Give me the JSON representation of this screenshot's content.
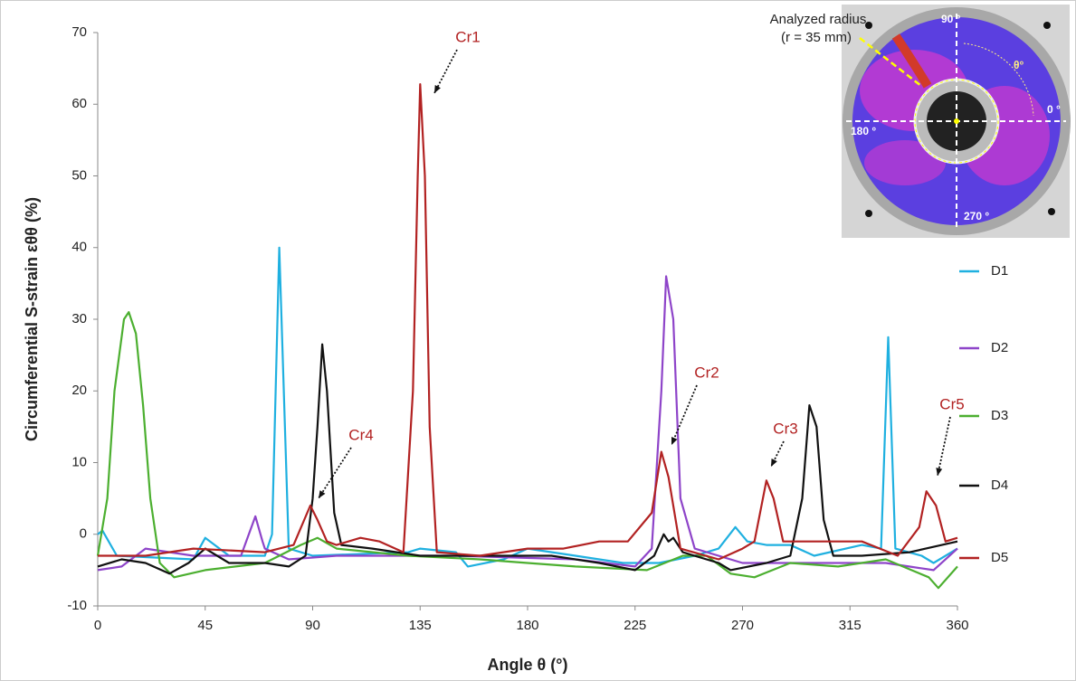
{
  "chart_data": {
    "type": "line",
    "x_label": "Angle θ (°)",
    "y_label": "Circumferential S-strain εθθ (%)",
    "xlim": [
      0,
      360
    ],
    "xticks": [
      0,
      45,
      90,
      135,
      180,
      225,
      270,
      315,
      360
    ],
    "ylim": [
      -10,
      70
    ],
    "yticks": [
      -10,
      0,
      10,
      20,
      30,
      40,
      50,
      60,
      70
    ],
    "annotations": [
      "Cr1",
      "Cr2",
      "Cr3",
      "Cr4",
      "Cr5"
    ],
    "inset_labels": [
      "Analyzed radius",
      "(r = 35 mm)",
      "90 °",
      "0 °",
      "180 °",
      "270 °",
      "θ°"
    ],
    "series": [
      {
        "name": "D1",
        "color": "#1fb0e0",
        "x": [
          0,
          2,
          8,
          40,
          45,
          55,
          70,
          73,
          76,
          80,
          90,
          130,
          135,
          150,
          155,
          170,
          180,
          200,
          220,
          235,
          250,
          260,
          267,
          272,
          280,
          290,
          300,
          320,
          328,
          331,
          334,
          345,
          350,
          360
        ],
        "values": [
          0,
          0.5,
          -3,
          -3.5,
          -0.5,
          -3,
          -3,
          0,
          40,
          -2,
          -3,
          -2.5,
          -2,
          -2.5,
          -4.5,
          -3.5,
          -2,
          -3,
          -4,
          -4,
          -3,
          -2,
          1,
          -1,
          -1.5,
          -1.5,
          -3,
          -1.5,
          -2,
          27.5,
          -2,
          -3,
          -4,
          -2
        ]
      },
      {
        "name": "D2",
        "color": "#8e44c9",
        "x": [
          0,
          10,
          20,
          40,
          60,
          66,
          69,
          70,
          80,
          100,
          150,
          200,
          225,
          232,
          236,
          238,
          241,
          244,
          250,
          270,
          300,
          330,
          350,
          360
        ],
        "values": [
          -5,
          -4.5,
          -2,
          -3,
          -3,
          2.5,
          -1,
          -2,
          -3.5,
          -3,
          -3,
          -3.5,
          -4.5,
          -2,
          20,
          36,
          30,
          5,
          -2,
          -4,
          -4,
          -4,
          -5,
          -2
        ]
      },
      {
        "name": "D3",
        "color": "#4caf30",
        "x": [
          0,
          4,
          7,
          11,
          13,
          16,
          19,
          22,
          26,
          32,
          45,
          70,
          85,
          92,
          100,
          130,
          160,
          180,
          200,
          230,
          245,
          255,
          265,
          275,
          290,
          310,
          330,
          348,
          352,
          360
        ],
        "values": [
          -3,
          5,
          20,
          30,
          31,
          28,
          18,
          5,
          -4,
          -6,
          -5,
          -4,
          -1.5,
          -0.5,
          -2,
          -3,
          -3.5,
          -4,
          -4.5,
          -5,
          -3,
          -3,
          -5.5,
          -6,
          -4,
          -4.5,
          -3.5,
          -6,
          -7.5,
          -4.5
        ]
      },
      {
        "name": "D4",
        "color": "#111111",
        "x": [
          0,
          10,
          20,
          30,
          38,
          45,
          55,
          70,
          80,
          87,
          90,
          92,
          94,
          96,
          99,
          102,
          115,
          135,
          160,
          190,
          210,
          225,
          233,
          237,
          239,
          241,
          245,
          260,
          265,
          280,
          290,
          295,
          298,
          301,
          304,
          308,
          320,
          340,
          360
        ],
        "values": [
          -4.5,
          -3.5,
          -4,
          -5.5,
          -4,
          -2,
          -4,
          -4,
          -4.5,
          -3,
          5,
          15,
          26.5,
          20,
          3,
          -1.5,
          -2,
          -3,
          -3,
          -3,
          -4,
          -5,
          -3,
          0,
          -1,
          -0.5,
          -2.5,
          -4,
          -5,
          -4,
          -3,
          5,
          18,
          15,
          2,
          -3,
          -3,
          -2.5,
          -1
        ]
      },
      {
        "name": "D5",
        "color": "#b22222",
        "x": [
          0,
          20,
          40,
          70,
          82,
          89,
          92,
          96,
          100,
          110,
          118,
          128,
          132,
          134,
          135,
          137,
          139,
          142,
          160,
          180,
          195,
          210,
          222,
          232,
          236,
          239,
          244,
          260,
          270,
          275,
          280,
          283,
          287,
          300,
          320,
          335,
          344,
          347,
          351,
          355,
          360
        ],
        "values": [
          -3,
          -3,
          -2,
          -2.5,
          -1.5,
          4,
          2,
          -1,
          -1.5,
          -0.5,
          -1,
          -2.5,
          20,
          50,
          62.8,
          50,
          15,
          -2.5,
          -3,
          -2,
          -2,
          -1,
          -1,
          3,
          11.5,
          8,
          -2,
          -3.5,
          -2,
          -1,
          7.5,
          5,
          -1,
          -1,
          -1,
          -3,
          1,
          6,
          4,
          -1,
          -0.5
        ]
      }
    ]
  }
}
